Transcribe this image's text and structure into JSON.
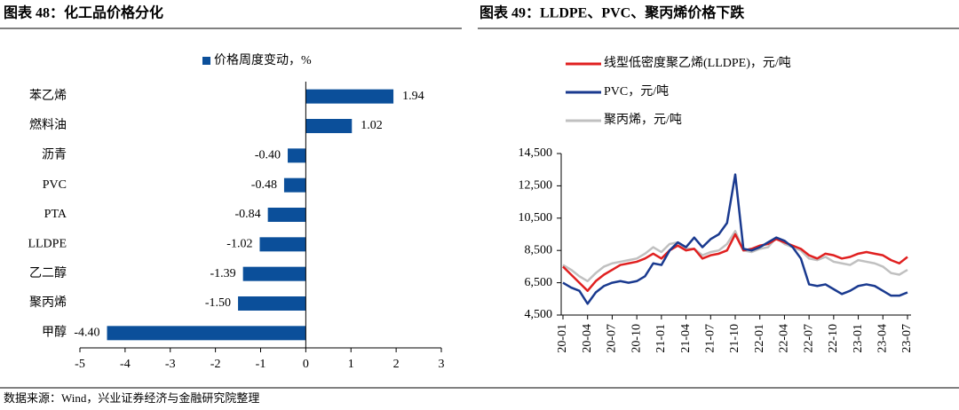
{
  "header": {
    "left_title": "图表 48：化工品价格分化",
    "right_title": "图表 49：LLDPE、PVC、聚丙烯价格下跌"
  },
  "source": "数据来源：Wind，兴业证券经济与金融研究院整理",
  "chart_data": [
    {
      "type": "hbar",
      "legend": "价格周度变动，%",
      "color": "#0b4f9a",
      "categories": [
        "苯乙烯",
        "燃料油",
        "沥青",
        "PVC",
        "PTA",
        "LLDPE",
        "乙二醇",
        "聚丙烯",
        "甲醇"
      ],
      "values": [
        1.94,
        1.02,
        -0.4,
        -0.48,
        -0.84,
        -1.02,
        -1.39,
        -1.5,
        -4.4
      ],
      "value_labels": [
        "1.94",
        "1.02",
        "-0.40",
        "-0.48",
        "-0.84",
        "-1.02",
        "-1.39",
        "-1.50",
        "-4.40"
      ],
      "xlim": [
        -5,
        3
      ],
      "xticks": [
        -5,
        -4,
        -3,
        -2,
        -1,
        0,
        1,
        2,
        3
      ]
    },
    {
      "type": "line",
      "categories": [
        "20-01",
        null,
        null,
        "20-04",
        null,
        null,
        "20-07",
        null,
        null,
        "20-10",
        null,
        null,
        "21-01",
        null,
        null,
        "21-04",
        null,
        null,
        "21-07",
        null,
        null,
        "21-10",
        null,
        null,
        "22-01",
        null,
        null,
        "22-04",
        null,
        null,
        "22-07",
        null,
        null,
        "22-10",
        null,
        null,
        "23-01",
        null,
        null,
        "23-04",
        null,
        null,
        "23-07"
      ],
      "ylim": [
        4500,
        14500
      ],
      "yticks": [
        {
          "value": 4500,
          "label": "4,500"
        },
        {
          "value": 6500,
          "label": "6,500"
        },
        {
          "value": 8500,
          "label": "8,500"
        },
        {
          "value": 10500,
          "label": "10,500"
        },
        {
          "value": 12500,
          "label": "12,500"
        },
        {
          "value": 14500,
          "label": "14,500"
        }
      ],
      "series": [
        {
          "name": "线型低密度聚乙烯(LLDPE)，元/吨",
          "color": "#e02020",
          "values": [
            7500,
            7000,
            6500,
            6000,
            6600,
            7000,
            7300,
            7600,
            7700,
            7800,
            8000,
            8300,
            8000,
            8500,
            8800,
            8500,
            8600,
            8000,
            8200,
            8300,
            8500,
            9500,
            8500,
            8600,
            8800,
            8900,
            9200,
            9000,
            8800,
            8600,
            8200,
            8000,
            8300,
            8200,
            8000,
            8100,
            8300,
            8400,
            8300,
            8200,
            7900,
            7700,
            8100
          ]
        },
        {
          "name": "PVC，元/吨",
          "color": "#1a3a8f",
          "values": [
            6500,
            6200,
            6000,
            5200,
            5900,
            6300,
            6500,
            6600,
            6500,
            6600,
            6900,
            7700,
            7600,
            8500,
            9000,
            8700,
            9300,
            8700,
            9200,
            9500,
            10200,
            13200,
            8600,
            8500,
            8700,
            9000,
            9300,
            9100,
            8700,
            8000,
            6400,
            6300,
            6400,
            6100,
            5800,
            6000,
            6300,
            6400,
            6300,
            6000,
            5700,
            5700,
            5900
          ]
        },
        {
          "name": "聚丙烯，元/吨",
          "color": "#c0c0c0",
          "values": [
            7600,
            7300,
            6900,
            6600,
            7100,
            7500,
            7700,
            7800,
            7900,
            8000,
            8300,
            8700,
            8400,
            8900,
            9000,
            8600,
            8600,
            8200,
            8400,
            8500,
            8900,
            9700,
            8500,
            8400,
            8600,
            8700,
            9300,
            8900,
            8700,
            8500,
            8000,
            7900,
            8100,
            7800,
            7700,
            7600,
            7900,
            7800,
            7700,
            7500,
            7100,
            7000,
            7300
          ]
        }
      ]
    }
  ]
}
